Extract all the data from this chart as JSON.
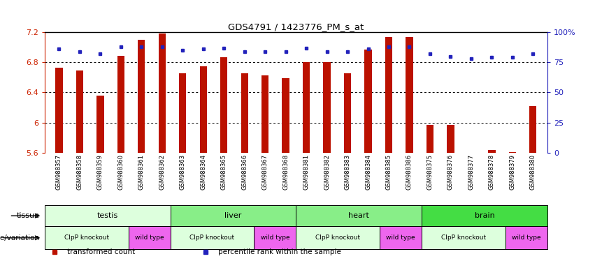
{
  "title": "GDS4791 / 1423776_PM_s_at",
  "samples": [
    "GSM988357",
    "GSM988358",
    "GSM988359",
    "GSM988360",
    "GSM988361",
    "GSM988362",
    "GSM988363",
    "GSM988364",
    "GSM988365",
    "GSM988366",
    "GSM988367",
    "GSM988368",
    "GSM988381",
    "GSM988382",
    "GSM988383",
    "GSM988384",
    "GSM988385",
    "GSM988386",
    "GSM988375",
    "GSM988376",
    "GSM988377",
    "GSM988378",
    "GSM988379",
    "GSM988380"
  ],
  "bar_values": [
    6.73,
    6.69,
    6.36,
    6.89,
    7.1,
    7.18,
    6.65,
    6.75,
    6.87,
    6.65,
    6.63,
    6.59,
    6.8,
    6.8,
    6.65,
    6.97,
    7.14,
    7.14,
    5.97,
    5.97,
    5.5,
    5.64,
    5.61,
    6.22
  ],
  "percentile_values": [
    86,
    84,
    82,
    88,
    88,
    88,
    85,
    86,
    87,
    84,
    84,
    84,
    87,
    84,
    84,
    86,
    88,
    88,
    82,
    80,
    78,
    79,
    79,
    82
  ],
  "ymin": 5.6,
  "ymax": 7.2,
  "yticks": [
    5.6,
    6.0,
    6.4,
    6.8,
    7.2
  ],
  "ytick_labels": [
    "5.6",
    "6",
    "6.4",
    "6.8",
    "7.2"
  ],
  "right_yticks": [
    0,
    25,
    50,
    75,
    100
  ],
  "right_ytick_labels": [
    "0",
    "25",
    "50",
    "75",
    "100%"
  ],
  "tissue_groups": [
    {
      "label": "testis",
      "start": 0,
      "end": 6,
      "color": "#ddffdd"
    },
    {
      "label": "liver",
      "start": 6,
      "end": 12,
      "color": "#88ee88"
    },
    {
      "label": "heart",
      "start": 12,
      "end": 18,
      "color": "#88ee88"
    },
    {
      "label": "brain",
      "start": 18,
      "end": 24,
      "color": "#44dd44"
    }
  ],
  "genotype_groups": [
    {
      "label": "ClpP knockout",
      "start": 0,
      "end": 4,
      "color": "#ddffdd"
    },
    {
      "label": "wild type",
      "start": 4,
      "end": 6,
      "color": "#ee66ee"
    },
    {
      "label": "ClpP knockout",
      "start": 6,
      "end": 10,
      "color": "#ddffdd"
    },
    {
      "label": "wild type",
      "start": 10,
      "end": 12,
      "color": "#ee66ee"
    },
    {
      "label": "ClpP knockout",
      "start": 12,
      "end": 16,
      "color": "#ddffdd"
    },
    {
      "label": "wild type",
      "start": 16,
      "end": 18,
      "color": "#ee66ee"
    },
    {
      "label": "ClpP knockout",
      "start": 18,
      "end": 22,
      "color": "#ddffdd"
    },
    {
      "label": "wild type",
      "start": 22,
      "end": 24,
      "color": "#ee66ee"
    }
  ],
  "bar_color": "#bb1100",
  "dot_color": "#2222bb",
  "bar_width": 0.35,
  "legend_items": [
    {
      "label": "transformed count",
      "color": "#bb1100"
    },
    {
      "label": "percentile rank within the sample",
      "color": "#2222bb"
    }
  ],
  "tissue_label": "tissue",
  "genotype_label": "genotype/variation",
  "bg": "#ffffff",
  "red": "#cc2200",
  "blue": "#2222bb",
  "xtick_bg": "#d8d8d8"
}
